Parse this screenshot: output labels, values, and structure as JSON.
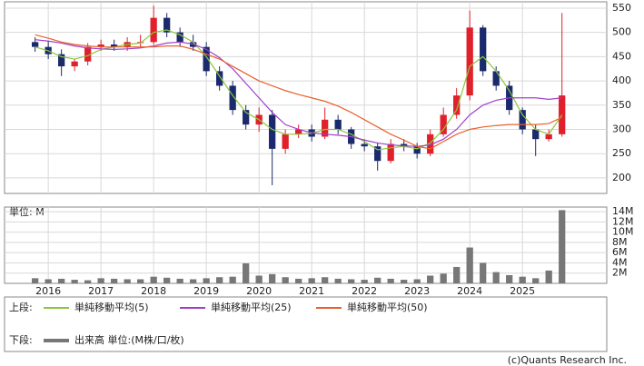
{
  "chart_data": {
    "type": "candlestick",
    "x": [
      2015.75,
      2016,
      2016.25,
      2016.5,
      2016.75,
      2017,
      2017.25,
      2017.5,
      2017.75,
      2018,
      2018.25,
      2018.5,
      2018.75,
      2019,
      2019.25,
      2019.5,
      2019.75,
      2020,
      2020.25,
      2020.5,
      2020.75,
      2021,
      2021.25,
      2021.5,
      2021.75,
      2022,
      2022.25,
      2022.5,
      2022.75,
      2023,
      2023.25,
      2023.5,
      2023.75,
      2024,
      2024.25,
      2024.5,
      2024.75,
      2025,
      2025.25,
      2025.5,
      2025.75
    ],
    "open": [
      480,
      470,
      455,
      430,
      440,
      470,
      475,
      470,
      480,
      480,
      530,
      500,
      480,
      470,
      420,
      390,
      340,
      310,
      330,
      260,
      290,
      300,
      285,
      320,
      300,
      270,
      265,
      235,
      270,
      265,
      250,
      290,
      330,
      370,
      510,
      420,
      390,
      340,
      300,
      280,
      290
    ],
    "high": [
      490,
      482,
      465,
      445,
      478,
      485,
      485,
      490,
      495,
      555,
      540,
      510,
      495,
      480,
      430,
      400,
      350,
      345,
      340,
      300,
      310,
      310,
      345,
      330,
      305,
      280,
      272,
      280,
      280,
      272,
      300,
      345,
      385,
      545,
      515,
      430,
      400,
      345,
      310,
      300,
      540
    ],
    "low": [
      460,
      445,
      410,
      420,
      432,
      462,
      462,
      462,
      470,
      475,
      490,
      470,
      462,
      410,
      380,
      330,
      300,
      295,
      185,
      250,
      282,
      275,
      280,
      290,
      260,
      255,
      215,
      230,
      255,
      240,
      245,
      285,
      322,
      360,
      410,
      380,
      330,
      290,
      245,
      275,
      285
    ],
    "close": [
      470,
      455,
      430,
      440,
      470,
      475,
      470,
      480,
      480,
      530,
      500,
      480,
      470,
      420,
      390,
      340,
      310,
      330,
      260,
      290,
      300,
      285,
      320,
      300,
      270,
      265,
      235,
      270,
      265,
      250,
      290,
      330,
      370,
      510,
      420,
      390,
      340,
      300,
      280,
      290,
      370
    ],
    "up_color": "#e0202a",
    "down_color": "#1a2a6c",
    "legend_title": "上段:",
    "series": [
      {
        "name": "単純移動平均(5)",
        "color": "#8cc63f",
        "values": [
          470,
          462,
          450,
          445,
          452,
          465,
          470,
          475,
          478,
          500,
          505,
          495,
          480,
          450,
          410,
          370,
          335,
          320,
          300,
          290,
          290,
          292,
          300,
          300,
          290,
          275,
          258,
          262,
          265,
          260,
          272,
          300,
          340,
          430,
          450,
          420,
          380,
          330,
          300,
          290,
          330
        ]
      },
      {
        "name": "単純移動平均(25)",
        "color": "#a040c8",
        "values": [
          485,
          482,
          478,
          472,
          468,
          466,
          465,
          466,
          468,
          472,
          478,
          480,
          476,
          465,
          448,
          425,
          395,
          365,
          335,
          310,
          300,
          293,
          290,
          288,
          285,
          278,
          272,
          268,
          266,
          265,
          268,
          280,
          300,
          330,
          350,
          360,
          365,
          365,
          365,
          362,
          365
        ]
      },
      {
        "name": "単純移動平均(50)",
        "color": "#e8602c",
        "values": [
          495,
          488,
          480,
          475,
          472,
          470,
          470,
          470,
          470,
          470,
          472,
          472,
          465,
          455,
          445,
          430,
          415,
          400,
          390,
          380,
          372,
          365,
          358,
          348,
          335,
          320,
          305,
          290,
          278,
          265,
          260,
          275,
          290,
          300,
          305,
          308,
          310,
          310,
          310,
          312,
          325
        ]
      }
    ],
    "xlim": [
      2015.17,
      2026.6
    ],
    "xticks": [
      2016,
      2017,
      2018,
      2019,
      2020,
      2021,
      2022,
      2023,
      2024,
      2025
    ],
    "ylim": [
      168,
      563
    ],
    "yticks": [
      200,
      250,
      300,
      350,
      400,
      450,
      500,
      550
    ],
    "grid": true,
    "volume": {
      "name": "出来高 単位:(M株/口/枚)",
      "legend_title": "下段:",
      "axis_label": "単位: M",
      "color": "#777777",
      "values": [
        1,
        0.8,
        0.9,
        0.7,
        0.6,
        1,
        0.9,
        0.8,
        0.8,
        1.3,
        1.1,
        0.9,
        0.8,
        1,
        1.2,
        1.3,
        3.9,
        1.5,
        1.8,
        1.2,
        0.9,
        1,
        1.2,
        0.9,
        0.8,
        0.7,
        1.1,
        0.9,
        0.7,
        0.8,
        1.5,
        1.9,
        3.2,
        7,
        4,
        2.2,
        1.6,
        1.3,
        1,
        2.5,
        14.3
      ],
      "ylim": [
        0,
        14.9
      ],
      "yticks": [
        {
          "value": 2,
          "label": "2M"
        },
        {
          "value": 4,
          "label": "4M"
        },
        {
          "value": 6,
          "label": "6M"
        },
        {
          "value": 8,
          "label": "8M"
        },
        {
          "value": 10,
          "label": "10M"
        },
        {
          "value": 12,
          "label": "12M"
        },
        {
          "value": 14,
          "label": "14M"
        }
      ]
    }
  },
  "footer": "(c)Quants Research Inc."
}
